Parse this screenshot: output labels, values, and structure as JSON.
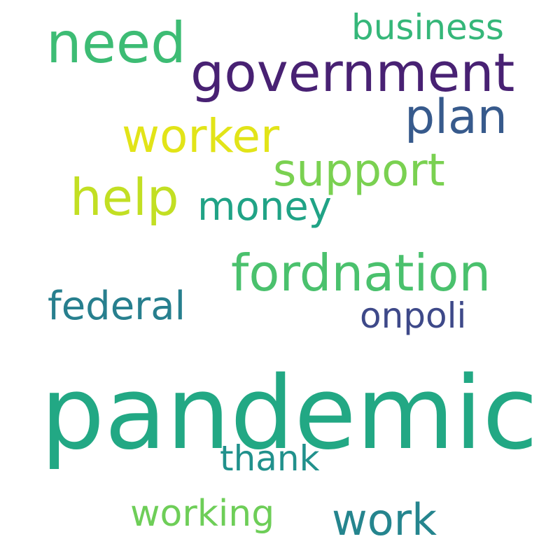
{
  "words": [
    {
      "text": "pandemic",
      "color": "#22a884"
    },
    {
      "text": "government",
      "color": "#482173"
    },
    {
      "text": "need",
      "color": "#3dbc74"
    },
    {
      "text": "business",
      "color": "#35b779"
    },
    {
      "text": "plan",
      "color": "#375a8c"
    },
    {
      "text": "worker",
      "color": "#e2e418"
    },
    {
      "text": "support",
      "color": "#7ad151"
    },
    {
      "text": "help",
      "color": "#c2df23"
    },
    {
      "text": "money",
      "color": "#20a386"
    },
    {
      "text": "fordnation",
      "color": "#4ac16d"
    },
    {
      "text": "federal",
      "color": "#277f8e"
    },
    {
      "text": "onpoli",
      "color": "#3e4989"
    },
    {
      "text": "thank",
      "color": "#21918c"
    },
    {
      "text": "working",
      "color": "#6ece58"
    },
    {
      "text": "work",
      "color": "#25858e"
    }
  ]
}
